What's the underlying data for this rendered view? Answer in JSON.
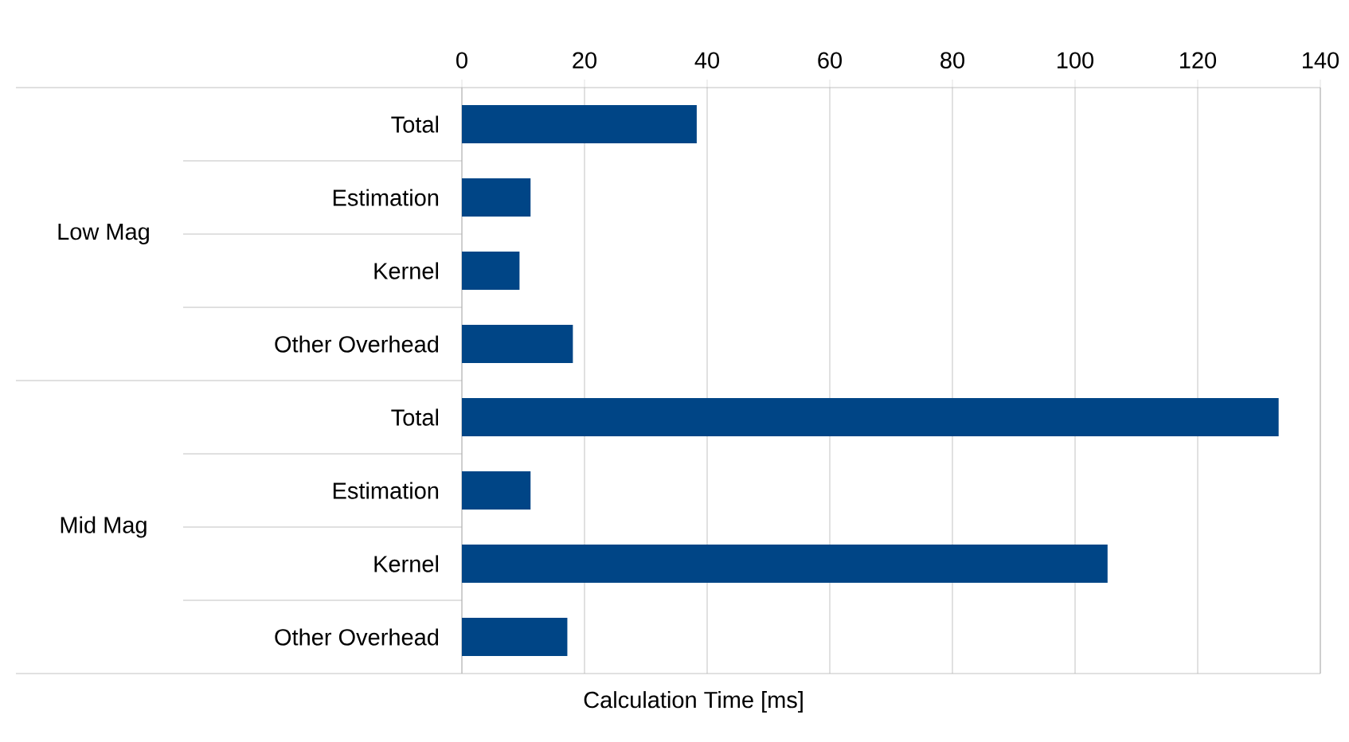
{
  "chart_data": {
    "type": "bar",
    "orientation": "horizontal",
    "xlabel": "Calculation Time [ms]",
    "categories": [
      "Total",
      "Estimation",
      "Kernel",
      "Other Overhead",
      "Total",
      "Estimation",
      "Kernel",
      "Other Overhead"
    ],
    "values": [
      38.3,
      11.2,
      9.4,
      18.1,
      133.2,
      11.2,
      105.3,
      17.2
    ],
    "color": "#004586",
    "xlim": [
      0,
      140
    ],
    "xticks": [
      0,
      20,
      40,
      60,
      80,
      100,
      120,
      140
    ],
    "grid": "x",
    "annotations": [
      "Low Mag",
      "Mid Mag"
    ]
  }
}
